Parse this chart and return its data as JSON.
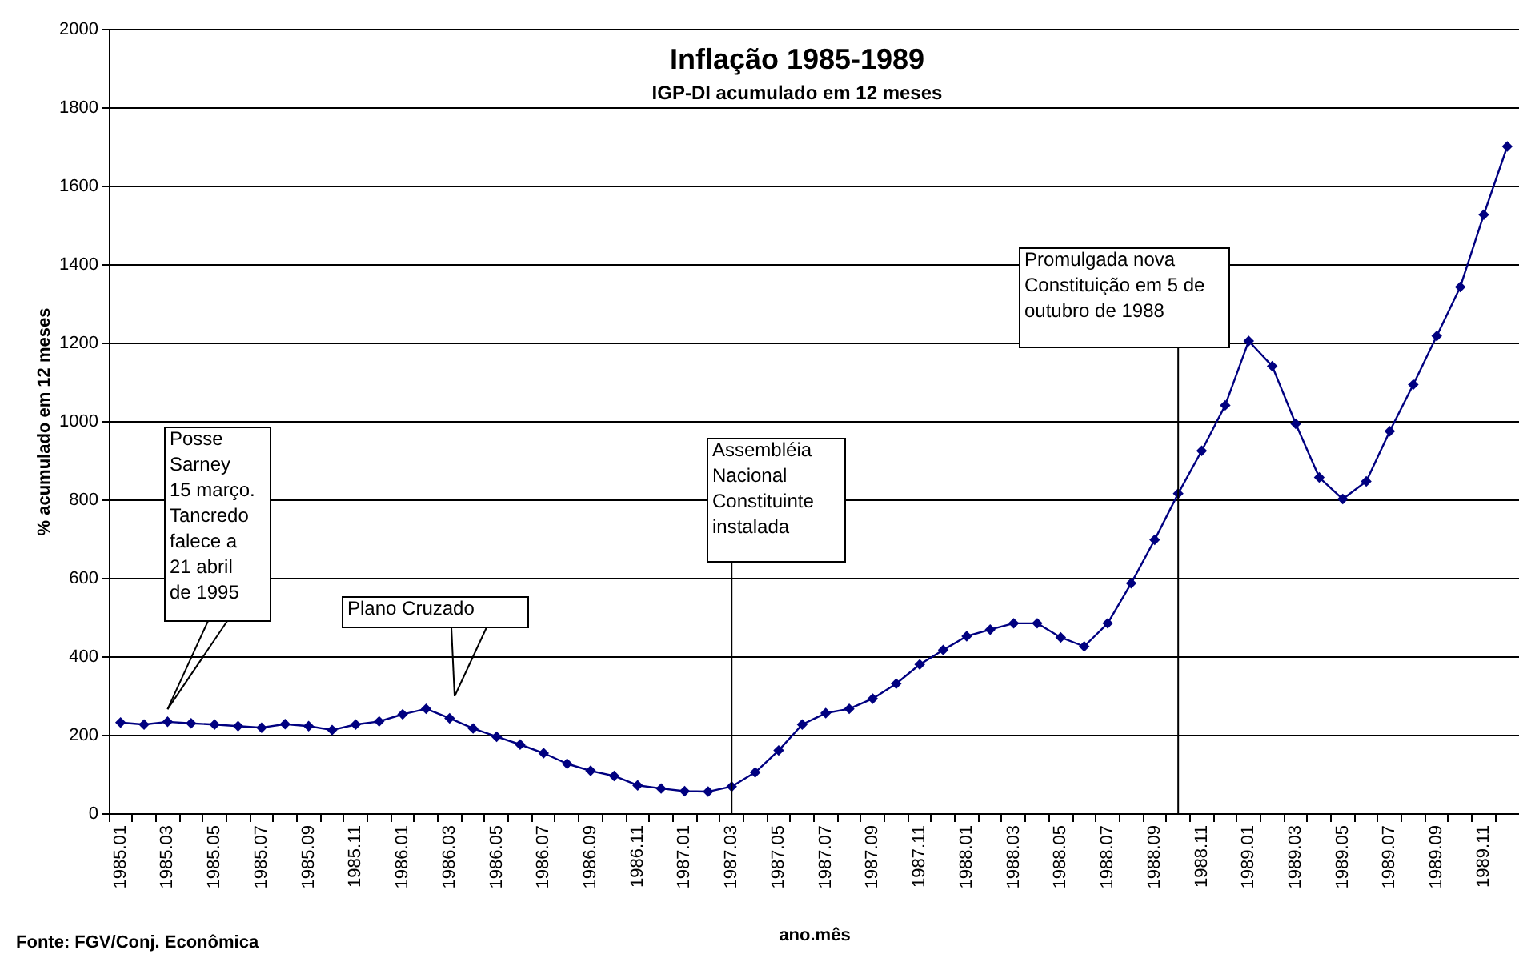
{
  "chart_data": {
    "type": "line",
    "title": "Inflação 1985-1989",
    "subtitle": "IGP-DI acumulado em 12 meses",
    "xlabel": "ano.mês",
    "ylabel": "% acumulado em 12 meses",
    "categories": [
      "1985.01",
      null,
      "1985.03",
      null,
      "1985.05",
      null,
      "1985.07",
      null,
      "1985.09",
      null,
      "1985.11",
      null,
      "1986.01",
      null,
      "1986.03",
      null,
      "1986.05",
      null,
      "1986.07",
      null,
      "1986.09",
      null,
      "1986.11",
      null,
      "1987.01",
      null,
      "1987.03",
      null,
      "1987.05",
      null,
      "1987.07",
      null,
      "1987.09",
      null,
      "1987.11",
      null,
      "1988.01",
      null,
      "1988.03",
      null,
      "1988.05",
      null,
      "1988.07",
      null,
      "1988.09",
      null,
      "1988.11",
      null,
      "1989.01",
      null,
      "1989.03",
      null,
      "1989.05",
      null,
      "1989.07",
      null,
      "1989.09",
      null,
      "1989.11",
      null
    ],
    "series": [
      {
        "color": "#000080",
        "values": [
          231,
          226,
          233,
          229,
          226,
          222,
          218,
          227,
          222,
          212,
          226,
          234,
          252,
          266,
          242,
          216,
          195,
          175,
          153,
          126,
          108,
          95,
          71,
          63,
          56,
          55,
          68,
          104,
          160,
          226,
          255,
          266,
          292,
          330,
          379,
          416,
          451,
          468,
          484,
          484,
          448,
          425,
          484,
          586,
          697,
          815,
          924,
          1040,
          1204,
          1140,
          993,
          856,
          801,
          846,
          974,
          1093,
          1217,
          1342,
          1526,
          1700
        ]
      }
    ],
    "ylim": [
      0,
      2000
    ],
    "yticks": [
      0,
      200,
      400,
      600,
      800,
      1000,
      1200,
      1400,
      1600,
      1800,
      2000
    ],
    "grid": "y",
    "marker": "diamond",
    "line_style": "solid",
    "annotations": [
      {
        "text": "Posse\nSarney\n15 março.\nTancredo\nfalece a\n21 abril\nde 1995",
        "x": "1985.03",
        "y": 265
      },
      "Plano Cruzado",
      "Fonte:  FGV/Conj. Econômica"
    ],
    "ref_lines": [
      {
        "axis": "x",
        "value": "1987.03",
        "label": "Assembléia\nNacional\nConstituinte\ninstalada"
      },
      {
        "axis": "x",
        "value": null,
        "label": "Promulgada nova\nConstituição em 5 de\noutubro de 1988"
      }
    ]
  }
}
